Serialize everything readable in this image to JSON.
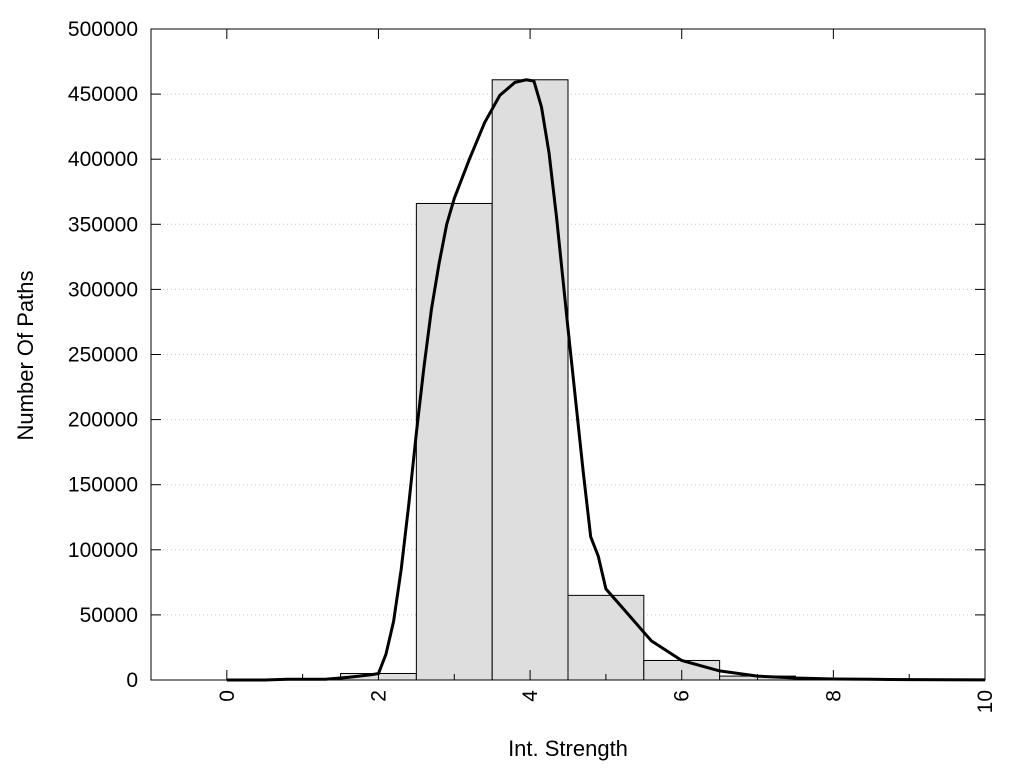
{
  "chart_data": {
    "type": "bar",
    "title": "",
    "xlabel": "Int. Strength",
    "ylabel": "Number Of Paths",
    "xlim": [
      -1,
      10
    ],
    "ylim": [
      0,
      500000
    ],
    "x_ticks": [
      0,
      2,
      4,
      6,
      8,
      10
    ],
    "x_tick_labels": [
      "0",
      "2",
      "4",
      "6",
      "8",
      "10"
    ],
    "y_ticks": [
      0,
      50000,
      100000,
      150000,
      200000,
      250000,
      300000,
      350000,
      400000,
      450000,
      500000
    ],
    "y_tick_labels": [
      "0",
      "50000",
      "100000",
      "150000",
      "200000",
      "250000",
      "300000",
      "350000",
      "400000",
      "450000",
      "500000"
    ],
    "grid": "horizontal dotted",
    "bar_color": "#dedede",
    "line_color": "#000000",
    "bars": [
      {
        "x": 0,
        "value": 0
      },
      {
        "x": 1,
        "value": 500
      },
      {
        "x": 2,
        "value": 5000
      },
      {
        "x": 3,
        "value": 366000
      },
      {
        "x": 4,
        "value": 461000
      },
      {
        "x": 5,
        "value": 65000
      },
      {
        "x": 6,
        "value": 15000
      },
      {
        "x": 7,
        "value": 3000
      },
      {
        "x": 8,
        "value": 800
      },
      {
        "x": 9,
        "value": 300
      },
      {
        "x": 10,
        "value": 100
      }
    ],
    "curve": {
      "x": [
        0,
        0.5,
        0.8,
        1.0,
        1.3,
        1.6,
        1.9,
        2.0,
        2.1,
        2.2,
        2.3,
        2.4,
        2.5,
        2.6,
        2.7,
        2.8,
        2.9,
        3.0,
        3.2,
        3.4,
        3.6,
        3.8,
        3.95,
        4.05,
        4.15,
        4.25,
        4.35,
        4.5,
        4.6,
        4.7,
        4.8,
        4.9,
        5.0,
        5.3,
        5.6,
        6.0,
        6.5,
        7.0,
        7.5,
        8.0,
        8.5,
        9.0,
        9.5,
        10.0
      ],
      "y": [
        0,
        0,
        500,
        500,
        500,
        2000,
        4000,
        5000,
        20000,
        45000,
        85000,
        135000,
        190000,
        240000,
        285000,
        320000,
        350000,
        370000,
        400000,
        428000,
        449000,
        459000,
        461000,
        460000,
        440000,
        405000,
        355000,
        270000,
        215000,
        160000,
        110000,
        95000,
        70000,
        50000,
        30000,
        15000,
        7000,
        3000,
        1500,
        800,
        500,
        300,
        200,
        100
      ]
    }
  }
}
